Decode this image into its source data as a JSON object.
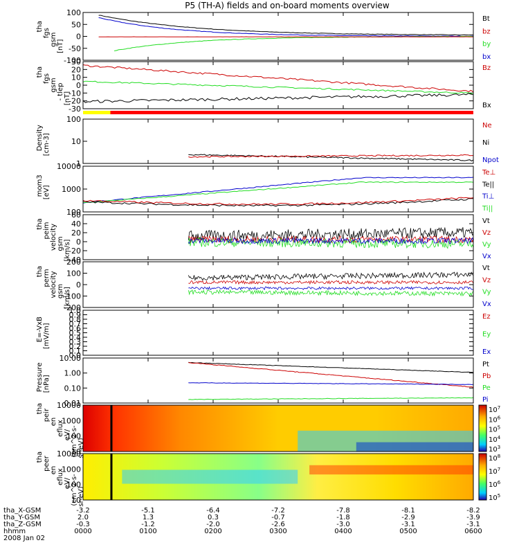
{
  "title": "P5 (TH-A) fields and on-board moments overview",
  "colors": {
    "black": "#000000",
    "red": "#cc0000",
    "green": "#22dd22",
    "blue": "#0000cc",
    "yellow": "#ffff00"
  },
  "chart_data": [
    {
      "type": "line",
      "ylabel": [
        "tha",
        "fgs",
        "gsm",
        "[nT]"
      ],
      "yticks": [
        "100",
        "50",
        "0",
        "-50",
        "-100"
      ],
      "legend": [
        {
          "name": "Bt",
          "color": "#000000"
        },
        {
          "name": "bz",
          "color": "#cc0000"
        },
        {
          "name": "by",
          "color": "#22dd22"
        },
        {
          "name": "bx",
          "color": "#0000cc"
        }
      ]
    },
    {
      "type": "line",
      "ylabel": [
        "tha",
        "fgs",
        "gsm",
        "- tlep",
        "[nT]"
      ],
      "yticks": [
        "30",
        "20",
        "10",
        "0",
        "-10",
        "-20",
        "-30"
      ],
      "legend": [
        {
          "name": "Bz",
          "color": "#cc0000"
        },
        {
          "name": "Bx",
          "color": "#000000"
        }
      ]
    },
    {
      "type": "line",
      "ylabel": [
        "Density",
        "[cm-3]"
      ],
      "yticks": [
        "100",
        "10",
        "1"
      ],
      "legend": [
        {
          "name": "Ne",
          "color": "#cc0000"
        },
        {
          "name": "Ni",
          "color": "#000000"
        },
        {
          "name": "Npot",
          "color": "#0000cc"
        }
      ]
    },
    {
      "type": "line",
      "ylabel": [
        "mom3",
        "[eV]"
      ],
      "yticks": [
        "10000",
        "1000",
        "100"
      ],
      "legend": [
        {
          "name": "Te⊥",
          "color": "#cc0000"
        },
        {
          "name": "Te||",
          "color": "#000000"
        },
        {
          "name": "Ti⊥",
          "color": "#0000cc"
        },
        {
          "name": "Ti||",
          "color": "#22dd22"
        }
      ]
    },
    {
      "type": "line",
      "ylabel": [
        "tha",
        "peim",
        "velocity",
        "gsm",
        "[km/s]"
      ],
      "yticks": [
        "60",
        "40",
        "20",
        "0",
        "-20",
        "-40"
      ],
      "legend": [
        {
          "name": "Vt",
          "color": "#000000"
        },
        {
          "name": "Vz",
          "color": "#cc0000"
        },
        {
          "name": "Vy",
          "color": "#22dd22"
        },
        {
          "name": "Vx",
          "color": "#0000cc"
        }
      ]
    },
    {
      "type": "line",
      "ylabel": [
        "tha",
        "perm",
        "velocity",
        "gsm",
        "[km/s]"
      ],
      "yticks": [
        "200",
        "100",
        "0",
        "-100",
        "-200"
      ],
      "legend": [
        {
          "name": "Vt",
          "color": "#000000"
        },
        {
          "name": "Vz",
          "color": "#cc0000"
        },
        {
          "name": "Vy",
          "color": "#22dd22"
        },
        {
          "name": "Vx",
          "color": "#0000cc"
        }
      ]
    },
    {
      "type": "line",
      "ylabel": [
        "E=-VxB",
        "[mV/m]"
      ],
      "yticks": [
        "1.0",
        "0.9",
        "0.8",
        "0.7",
        "0.6",
        "0.5",
        "0.4",
        "0.3",
        "0.2",
        "0.1",
        "0.0"
      ],
      "legend": [
        {
          "name": "Ez",
          "color": "#cc0000"
        },
        {
          "name": "Ey",
          "color": "#22dd22"
        },
        {
          "name": "Ex",
          "color": "#0000cc"
        }
      ]
    },
    {
      "type": "line",
      "ylabel": [
        "Pressure",
        "[nPa]"
      ],
      "yticks": [
        "10.00",
        "1.00",
        "0.10",
        "0.01"
      ],
      "legend": [
        {
          "name": "Pt",
          "color": "#000000"
        },
        {
          "name": "Pb",
          "color": "#cc0000"
        },
        {
          "name": "Pe",
          "color": "#22dd22"
        },
        {
          "name": "Pi",
          "color": "#0000cc"
        }
      ]
    },
    {
      "type": "heatmap",
      "ylabel": [
        "tha",
        "peir",
        "en",
        "eflux",
        "eV/",
        "(cm^2-s-",
        "sr-eV)"
      ],
      "yticks": [
        "10000",
        "1000",
        "100",
        "10"
      ],
      "colorbar": [
        "10^7",
        "10^6",
        "10^5",
        "10^4",
        "10^3"
      ]
    },
    {
      "type": "heatmap",
      "ylabel": [
        "tha",
        "peer",
        "en",
        "eflux",
        "eV/",
        "(cm^2-s-",
        "sr-eV)"
      ],
      "yticks": [
        "10000",
        "1000",
        "100",
        "10"
      ],
      "colorbar": [
        "10^8",
        "10^7",
        "10^6",
        "10^5"
      ]
    }
  ],
  "x_axis": {
    "rows": [
      {
        "label": "tha_X-GSM",
        "values": [
          "-3.2",
          "-5.1",
          "-6.4",
          "-7.2",
          "-7.8",
          "-8.1",
          "-8.2"
        ]
      },
      {
        "label": "tha_Y-GSM",
        "values": [
          "2.0",
          "1.3",
          "0.3",
          "-0.7",
          "-1.8",
          "-2.9",
          "-3.9"
        ]
      },
      {
        "label": "tha_Z-GSM",
        "values": [
          "-0.3",
          "-1.2",
          "-2.0",
          "-2.6",
          "-3.0",
          "-3.1",
          "-3.1"
        ]
      },
      {
        "label": "hhmm",
        "values": [
          "0000",
          "0100",
          "0200",
          "0300",
          "0400",
          "0500",
          "0600"
        ]
      }
    ],
    "date": "2008 Jan 02"
  }
}
